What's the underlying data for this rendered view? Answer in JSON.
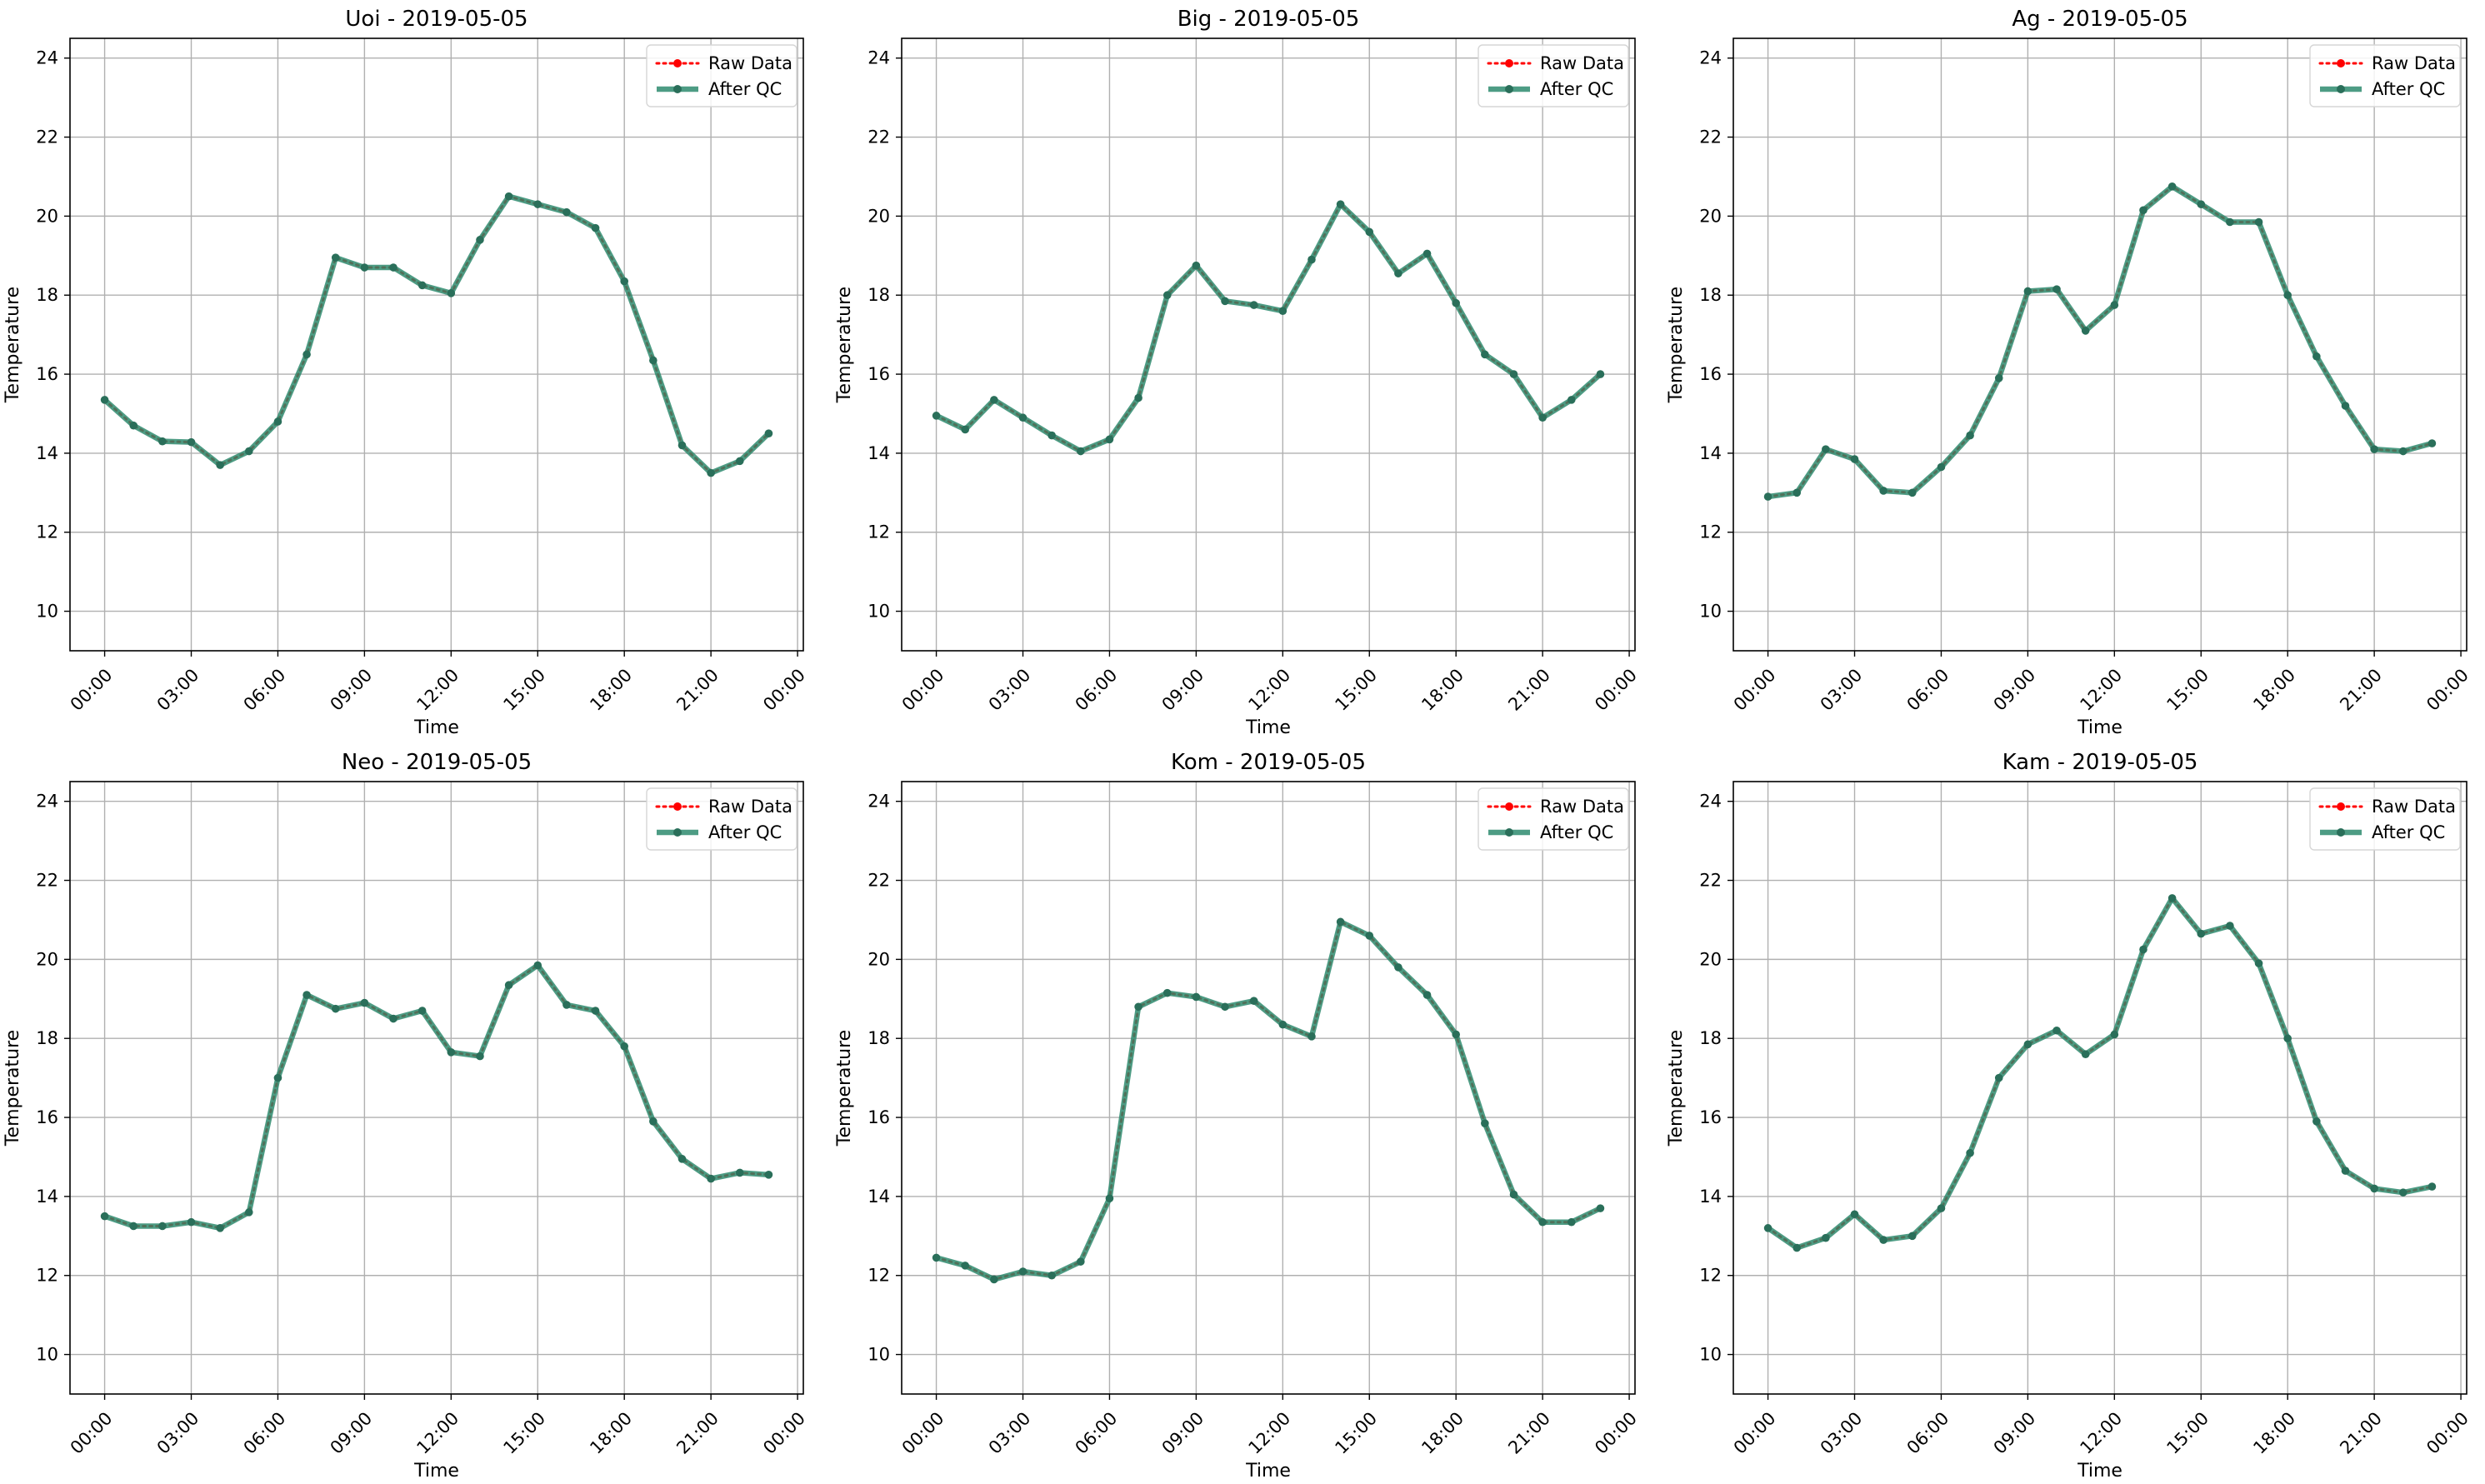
{
  "figure": {
    "colors": {
      "raw": "#ff0000",
      "qc": "#2e8b6e",
      "qc_marker": "#2a6f5a",
      "grid": "#b0b0b0",
      "axes": "#000000"
    }
  },
  "chart_data": [
    {
      "type": "line",
      "title": "Uoi - 2019-05-05",
      "xlabel": "Time",
      "ylabel": "Temperature",
      "x_hours": [
        0,
        1,
        2,
        3,
        4,
        5,
        6,
        7,
        8,
        9,
        10,
        11,
        12,
        13,
        14,
        15,
        16,
        17,
        18,
        19,
        20,
        21,
        22,
        23
      ],
      "xticks": [
        "00:00",
        "03:00",
        "06:00",
        "09:00",
        "12:00",
        "15:00",
        "18:00",
        "21:00",
        "00:00"
      ],
      "yticks": [
        "10",
        "12",
        "14",
        "16",
        "18",
        "20",
        "22",
        "24"
      ],
      "ylim": [
        9,
        24.5
      ],
      "xlim_hours": [
        -1.2,
        24.2
      ],
      "grid": true,
      "legend": "top-right",
      "series": [
        {
          "name": "Raw Data",
          "values": [
            15.35,
            14.7,
            14.3,
            14.28,
            13.7,
            14.05,
            14.8,
            16.5,
            18.95,
            18.7,
            18.7,
            18.25,
            18.05,
            19.4,
            20.5,
            20.3,
            20.1,
            19.7,
            18.35,
            16.35,
            14.2,
            13.5,
            13.8,
            14.5
          ]
        },
        {
          "name": "After QC",
          "values": [
            15.35,
            14.7,
            14.3,
            14.28,
            13.7,
            14.05,
            14.8,
            16.5,
            18.95,
            18.7,
            18.7,
            18.25,
            18.05,
            19.4,
            20.5,
            20.3,
            20.1,
            19.7,
            18.35,
            16.35,
            14.2,
            13.5,
            13.8,
            14.5
          ]
        }
      ]
    },
    {
      "type": "line",
      "title": "Big - 2019-05-05",
      "xlabel": "Time",
      "ylabel": "Temperature",
      "x_hours": [
        0,
        1,
        2,
        3,
        4,
        5,
        6,
        7,
        8,
        9,
        10,
        11,
        12,
        13,
        14,
        15,
        16,
        17,
        18,
        19,
        20,
        21,
        22,
        23
      ],
      "xticks": [
        "00:00",
        "03:00",
        "06:00",
        "09:00",
        "12:00",
        "15:00",
        "18:00",
        "21:00",
        "00:00"
      ],
      "yticks": [
        "10",
        "12",
        "14",
        "16",
        "18",
        "20",
        "22",
        "24"
      ],
      "ylim": [
        9,
        24.5
      ],
      "xlim_hours": [
        -1.2,
        24.2
      ],
      "grid": true,
      "legend": "top-right",
      "series": [
        {
          "name": "Raw Data",
          "values": [
            14.95,
            14.6,
            15.35,
            14.9,
            14.45,
            14.05,
            14.35,
            15.4,
            18.0,
            18.75,
            17.85,
            17.75,
            17.6,
            18.9,
            20.3,
            19.6,
            18.55,
            19.05,
            17.8,
            16.5,
            16.0,
            14.9,
            15.35,
            16.0
          ]
        },
        {
          "name": "After QC",
          "values": [
            14.95,
            14.6,
            15.35,
            14.9,
            14.45,
            14.05,
            14.35,
            15.4,
            18.0,
            18.75,
            17.85,
            17.75,
            17.6,
            18.9,
            20.3,
            19.6,
            18.55,
            19.05,
            17.8,
            16.5,
            16.0,
            14.9,
            15.35,
            16.0
          ]
        }
      ]
    },
    {
      "type": "line",
      "title": "Ag - 2019-05-05",
      "xlabel": "Time",
      "ylabel": "Temperature",
      "x_hours": [
        0,
        1,
        2,
        3,
        4,
        5,
        6,
        7,
        8,
        9,
        10,
        11,
        12,
        13,
        14,
        15,
        16,
        17,
        18,
        19,
        20,
        21,
        22,
        23
      ],
      "xticks": [
        "00:00",
        "03:00",
        "06:00",
        "09:00",
        "12:00",
        "15:00",
        "18:00",
        "21:00",
        "00:00"
      ],
      "yticks": [
        "10",
        "12",
        "14",
        "16",
        "18",
        "20",
        "22",
        "24"
      ],
      "ylim": [
        9,
        24.5
      ],
      "xlim_hours": [
        -1.2,
        24.2
      ],
      "grid": true,
      "legend": "top-right",
      "series": [
        {
          "name": "Raw Data",
          "values": [
            12.9,
            13.0,
            14.1,
            13.85,
            13.05,
            13.0,
            13.65,
            14.45,
            15.9,
            18.1,
            18.15,
            17.1,
            17.75,
            20.15,
            20.75,
            20.3,
            19.85,
            19.85,
            18.0,
            16.45,
            15.2,
            14.1,
            14.05,
            14.25
          ]
        },
        {
          "name": "After QC",
          "values": [
            12.9,
            13.0,
            14.1,
            13.85,
            13.05,
            13.0,
            13.65,
            14.45,
            15.9,
            18.1,
            18.15,
            17.1,
            17.75,
            20.15,
            20.75,
            20.3,
            19.85,
            19.85,
            18.0,
            16.45,
            15.2,
            14.1,
            14.05,
            14.25
          ]
        }
      ]
    },
    {
      "type": "line",
      "title": "Neo - 2019-05-05",
      "xlabel": "Time",
      "ylabel": "Temperature",
      "x_hours": [
        0,
        1,
        2,
        3,
        4,
        5,
        6,
        7,
        8,
        9,
        10,
        11,
        12,
        13,
        14,
        15,
        16,
        17,
        18,
        19,
        20,
        21,
        22,
        23
      ],
      "xticks": [
        "00:00",
        "03:00",
        "06:00",
        "09:00",
        "12:00",
        "15:00",
        "18:00",
        "21:00",
        "00:00"
      ],
      "yticks": [
        "10",
        "12",
        "14",
        "16",
        "18",
        "20",
        "22",
        "24"
      ],
      "ylim": [
        9,
        24.5
      ],
      "xlim_hours": [
        -1.2,
        24.2
      ],
      "grid": true,
      "legend": "top-right",
      "series": [
        {
          "name": "Raw Data",
          "values": [
            13.5,
            13.25,
            13.25,
            13.35,
            13.2,
            13.6,
            17.0,
            19.1,
            18.75,
            18.9,
            18.5,
            18.7,
            17.65,
            17.55,
            19.35,
            19.85,
            18.85,
            18.7,
            17.8,
            15.9,
            14.95,
            14.45,
            14.6,
            14.55
          ]
        },
        {
          "name": "After QC",
          "values": [
            13.5,
            13.25,
            13.25,
            13.35,
            13.2,
            13.6,
            17.0,
            19.1,
            18.75,
            18.9,
            18.5,
            18.7,
            17.65,
            17.55,
            19.35,
            19.85,
            18.85,
            18.7,
            17.8,
            15.9,
            14.95,
            14.45,
            14.6,
            14.55
          ]
        }
      ]
    },
    {
      "type": "line",
      "title": "Kom - 2019-05-05",
      "xlabel": "Time",
      "ylabel": "Temperature",
      "x_hours": [
        0,
        1,
        2,
        3,
        4,
        5,
        6,
        7,
        8,
        9,
        10,
        11,
        12,
        13,
        14,
        15,
        16,
        17,
        18,
        19,
        20,
        21,
        22,
        23
      ],
      "xticks": [
        "00:00",
        "03:00",
        "06:00",
        "09:00",
        "12:00",
        "15:00",
        "18:00",
        "21:00",
        "00:00"
      ],
      "yticks": [
        "10",
        "12",
        "14",
        "16",
        "18",
        "20",
        "22",
        "24"
      ],
      "ylim": [
        9,
        24.5
      ],
      "xlim_hours": [
        -1.2,
        24.2
      ],
      "grid": true,
      "legend": "top-right",
      "series": [
        {
          "name": "Raw Data",
          "values": [
            12.45,
            12.25,
            11.9,
            12.1,
            12.0,
            12.35,
            13.95,
            18.8,
            19.15,
            19.05,
            18.8,
            18.95,
            18.35,
            18.05,
            20.95,
            20.6,
            19.8,
            19.1,
            18.1,
            15.85,
            14.05,
            13.35,
            13.35,
            13.7
          ]
        },
        {
          "name": "After QC",
          "values": [
            12.45,
            12.25,
            11.9,
            12.1,
            12.0,
            12.35,
            13.95,
            18.8,
            19.15,
            19.05,
            18.8,
            18.95,
            18.35,
            18.05,
            20.95,
            20.6,
            19.8,
            19.1,
            18.1,
            15.85,
            14.05,
            13.35,
            13.35,
            13.7
          ]
        }
      ]
    },
    {
      "type": "line",
      "title": "Kam - 2019-05-05",
      "xlabel": "Time",
      "ylabel": "Temperature",
      "x_hours": [
        0,
        1,
        2,
        3,
        4,
        5,
        6,
        7,
        8,
        9,
        10,
        11,
        12,
        13,
        14,
        15,
        16,
        17,
        18,
        19,
        20,
        21,
        22,
        23
      ],
      "xticks": [
        "00:00",
        "03:00",
        "06:00",
        "09:00",
        "12:00",
        "15:00",
        "18:00",
        "21:00",
        "00:00"
      ],
      "yticks": [
        "10",
        "12",
        "14",
        "16",
        "18",
        "20",
        "22",
        "24"
      ],
      "ylim": [
        9,
        24.5
      ],
      "xlim_hours": [
        -1.2,
        24.2
      ],
      "grid": true,
      "legend": "top-right",
      "series": [
        {
          "name": "Raw Data",
          "values": [
            13.2,
            12.7,
            12.95,
            13.55,
            12.9,
            13.0,
            13.7,
            15.1,
            17.0,
            17.85,
            18.2,
            17.6,
            18.1,
            20.25,
            21.55,
            20.65,
            20.85,
            19.9,
            18.0,
            15.9,
            14.65,
            14.2,
            14.1,
            14.25
          ]
        },
        {
          "name": "After QC",
          "values": [
            13.2,
            12.7,
            12.95,
            13.55,
            12.9,
            13.0,
            13.7,
            15.1,
            17.0,
            17.85,
            18.2,
            17.6,
            18.1,
            20.25,
            21.55,
            20.65,
            20.85,
            19.9,
            18.0,
            15.9,
            14.65,
            14.2,
            14.1,
            14.25
          ]
        }
      ]
    }
  ]
}
